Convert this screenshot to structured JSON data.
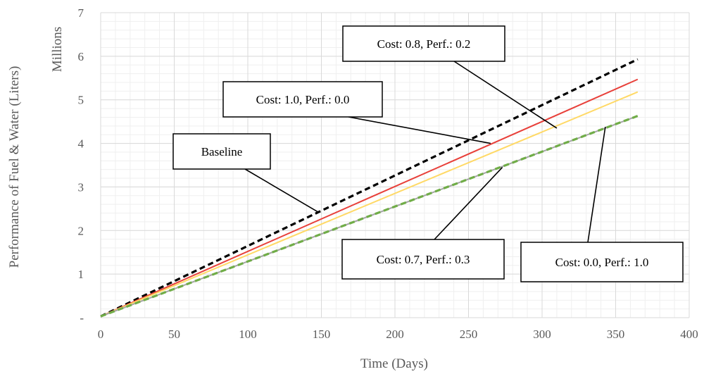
{
  "chart_data": {
    "type": "line",
    "title": "",
    "xlabel": "Time (Days)",
    "ylabel": "Performance of Fuel & Water (Liters)",
    "y_unit_label": "Millions",
    "xlim": [
      0,
      400
    ],
    "ylim": [
      0,
      7
    ],
    "x_ticks": [
      0,
      50,
      100,
      150,
      200,
      250,
      300,
      350,
      400
    ],
    "x_tick_labels": [
      "0",
      "50",
      "100",
      "150",
      "200",
      "250",
      "300",
      "350",
      "400"
    ],
    "y_ticks": [
      0,
      1,
      2,
      3,
      4,
      5,
      6,
      7
    ],
    "y_tick_labels": [
      "-",
      "1",
      "2",
      "3",
      "4",
      "5",
      "6",
      "7"
    ],
    "grid": true,
    "minor_grid": true,
    "series": [
      {
        "label": "Baseline",
        "color": "#000000",
        "dash": "dashed",
        "x": [
          0,
          365
        ],
        "y": [
          0.03,
          5.93
        ]
      },
      {
        "label": "Cost: 1.0, Perf.: 0.0",
        "color": "#e8403a",
        "dash": "solid",
        "x": [
          0,
          365
        ],
        "y": [
          0.03,
          5.47
        ]
      },
      {
        "label": "Cost: 0.8, Perf.: 0.2",
        "color": "#ffd966",
        "dash": "solid",
        "x": [
          0,
          365
        ],
        "y": [
          0.03,
          5.18
        ]
      },
      {
        "label": "Cost: 0.7, Perf.: 0.3",
        "color": "#a5a5a5",
        "dash": "solid",
        "x": [
          0,
          365
        ],
        "y": [
          0.03,
          4.63
        ]
      },
      {
        "label": "Cost: 0.0, Perf.: 1.0",
        "color": "#70ad47",
        "dash": "dashed",
        "x": [
          0,
          365
        ],
        "y": [
          0.03,
          4.63
        ]
      }
    ],
    "annotations": [
      {
        "text": "Cost: 0.8, Perf.: 0.2",
        "point": [
          310,
          4.35
        ]
      },
      {
        "text": "Cost: 1.0, Perf.: 0.0",
        "point": [
          265,
          4.0
        ]
      },
      {
        "text": "Baseline",
        "point": [
          148,
          2.42
        ]
      },
      {
        "text": "Cost: 0.7, Perf.: 0.3",
        "point": [
          273,
          3.45
        ]
      },
      {
        "text": "Cost: 0.0, Perf.: 1.0",
        "point": [
          343,
          4.38
        ]
      }
    ]
  }
}
